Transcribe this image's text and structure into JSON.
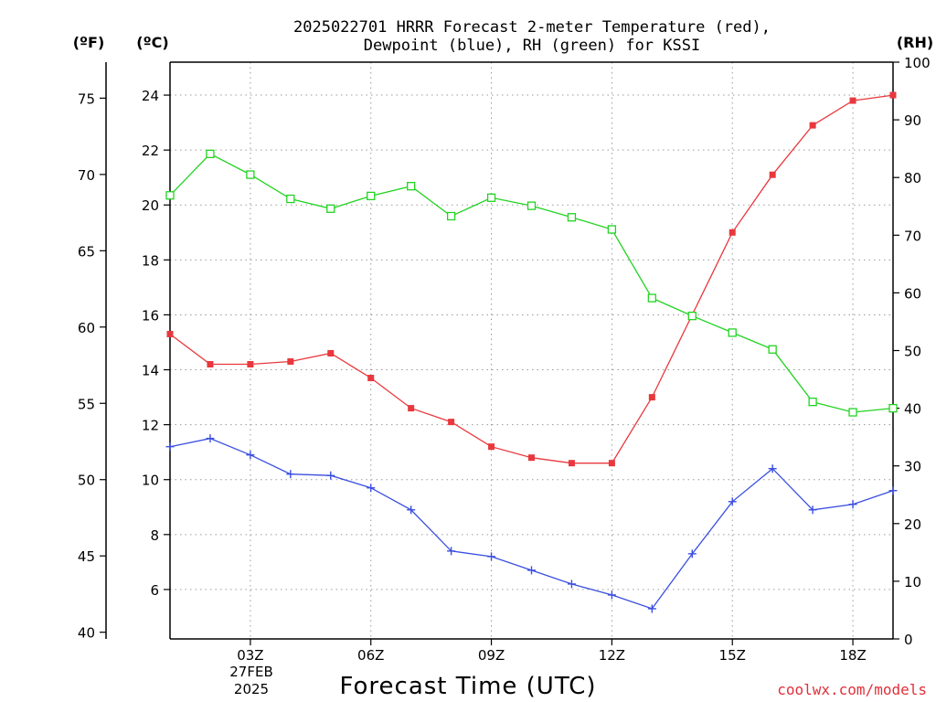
{
  "title_line1": "2025022701 HRRR Forecast 2-meter Temperature (red),",
  "title_line2": "Dewpoint (blue), RH (green) for KSSI",
  "unit_f": "(ºF)",
  "unit_c": "(ºC)",
  "unit_rh": "(RH)",
  "xlabel": "Forecast Time (UTC)",
  "credit": "coolwx.com/models",
  "date_line1": "27FEB",
  "date_line2": "2025",
  "chart_data": {
    "type": "line",
    "x": [
      "01Z",
      "02Z",
      "03Z",
      "04Z",
      "05Z",
      "06Z",
      "07Z",
      "08Z",
      "09Z",
      "10Z",
      "11Z",
      "12Z",
      "13Z",
      "14Z",
      "15Z",
      "16Z",
      "17Z",
      "18Z",
      "19Z"
    ],
    "x_tick_labels": [
      "03Z",
      "06Z",
      "09Z",
      "12Z",
      "15Z",
      "18Z"
    ],
    "x_tick_hours": [
      3,
      6,
      9,
      12,
      15,
      18
    ],
    "x_range_hours": [
      1,
      19
    ],
    "y_left_c": {
      "range": [
        4.2,
        25.2
      ],
      "ticks": [
        6,
        8,
        10,
        12,
        14,
        16,
        18,
        20,
        22,
        24
      ]
    },
    "y_left_f": {
      "range": [
        39.56,
        77.36
      ],
      "ticks": [
        40,
        45,
        50,
        55,
        60,
        65,
        70,
        75
      ]
    },
    "y_right_rh": {
      "range": [
        0,
        100
      ],
      "ticks": [
        0,
        10,
        20,
        30,
        40,
        50,
        60,
        70,
        80,
        90,
        100
      ]
    },
    "grid": true,
    "series": [
      {
        "name": "Temperature",
        "axis": "c",
        "color": "#e8383d",
        "marker": "filled-square",
        "values": [
          15.3,
          14.2,
          14.2,
          14.3,
          14.6,
          13.7,
          12.6,
          12.1,
          11.2,
          10.8,
          10.6,
          10.6,
          13.0,
          16.0,
          19.0,
          21.1,
          22.9,
          23.8,
          24.0
        ]
      },
      {
        "name": "Dewpoint",
        "axis": "c",
        "color": "#3a4ee0",
        "marker": "plus",
        "values": [
          11.2,
          11.5,
          10.9,
          10.2,
          10.15,
          9.7,
          8.9,
          7.4,
          7.2,
          6.7,
          6.2,
          5.8,
          5.3,
          7.3,
          9.2,
          10.4,
          8.9,
          9.1,
          9.6
        ]
      },
      {
        "name": "RH",
        "axis": "rh",
        "color": "#22d322",
        "marker": "open-square",
        "values": [
          76.9,
          84.1,
          80.5,
          76.3,
          74.6,
          76.8,
          78.5,
          73.3,
          76.5,
          75.1,
          73.1,
          71.0,
          59.1,
          56.0,
          53.1,
          50.2,
          41.1,
          39.3,
          40.0
        ]
      }
    ]
  }
}
